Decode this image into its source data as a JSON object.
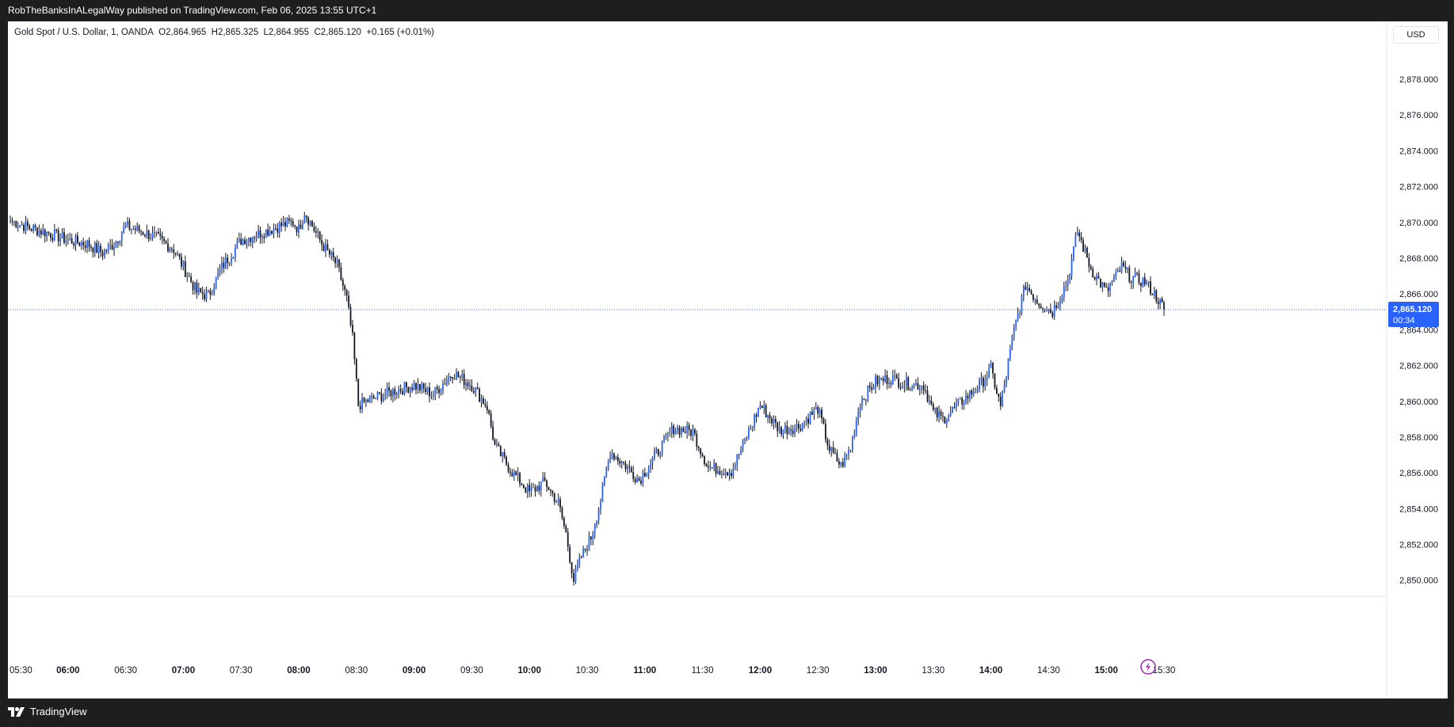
{
  "header": {
    "published": "RobTheBanksInALegalWay published on TradingView.com, Feb 06, 2025 13:55 UTC+1"
  },
  "legend": {
    "symbol": "Gold Spot / U.S. Dollar, 1, OANDA",
    "open": "O2,864.965",
    "high": "H2,865.325",
    "low": "L2,864.955",
    "close": "C2,865.120",
    "change": "+0.165 (+0.01%)"
  },
  "currency_button": "USD",
  "price_label": {
    "price": "2,865.120",
    "countdown": "00:34"
  },
  "footer": {
    "brand": "TradingView"
  },
  "colors": {
    "accent": "#2962ff",
    "candle": "#131722",
    "axis_text": "#131722",
    "event_icon": "#9c27b0"
  },
  "chart_data": {
    "type": "candlestick",
    "title": "Gold Spot / U.S. Dollar, 1, OANDA",
    "x_ticks": [
      "05:30",
      "06:00",
      "06:30",
      "07:00",
      "07:30",
      "08:00",
      "08:30",
      "09:00",
      "09:30",
      "10:00",
      "10:30",
      "11:00",
      "11:30",
      "12:00",
      "12:30",
      "13:00",
      "13:30",
      "14:00",
      "14:30",
      "15:00",
      "15:30"
    ],
    "y_ticks": [
      "2,850.000",
      "2,852.000",
      "2,854.000",
      "2,856.000",
      "2,858.000",
      "2,860.000",
      "2,862.000",
      "2,864.000",
      "2,866.000",
      "2,868.000",
      "2,870.000",
      "2,872.000",
      "2,874.000",
      "2,876.000",
      "2,878.000"
    ],
    "ylim": [
      2848.6,
      2880.2
    ],
    "last_price": 2865.12,
    "grid": false,
    "close_path": [
      [
        "05:30",
        2870.1
      ],
      [
        "05:40",
        2869.7
      ],
      [
        "05:50",
        2869.4
      ],
      [
        "06:00",
        2869.0
      ],
      [
        "06:10",
        2868.8
      ],
      [
        "06:18",
        2868.3
      ],
      [
        "06:24",
        2868.8
      ],
      [
        "06:30",
        2869.8
      ],
      [
        "06:38",
        2869.5
      ],
      [
        "06:45",
        2869.2
      ],
      [
        "06:55",
        2868.5
      ],
      [
        "07:00",
        2867.5
      ],
      [
        "07:07",
        2866.1
      ],
      [
        "07:13",
        2865.9
      ],
      [
        "07:20",
        2867.5
      ],
      [
        "07:30",
        2869.0
      ],
      [
        "07:40",
        2869.4
      ],
      [
        "07:50",
        2869.8
      ],
      [
        "07:57",
        2870.0
      ],
      [
        "08:00",
        2869.6
      ],
      [
        "08:03",
        2870.6
      ],
      [
        "08:07",
        2869.8
      ],
      [
        "08:12",
        2868.8
      ],
      [
        "08:20",
        2867.6
      ],
      [
        "08:25",
        2865.7
      ],
      [
        "08:28",
        2863.5
      ],
      [
        "08:31",
        2859.8
      ],
      [
        "08:40",
        2860.2
      ],
      [
        "08:50",
        2860.6
      ],
      [
        "09:00",
        2860.9
      ],
      [
        "09:10",
        2860.4
      ],
      [
        "09:20",
        2861.6
      ],
      [
        "09:30",
        2860.9
      ],
      [
        "09:38",
        2859.7
      ],
      [
        "09:42",
        2857.5
      ],
      [
        "09:50",
        2856.2
      ],
      [
        "10:00",
        2854.9
      ],
      [
        "10:08",
        2855.5
      ],
      [
        "10:15",
        2854.3
      ],
      [
        "10:19",
        2852.6
      ],
      [
        "10:23",
        2850.0
      ],
      [
        "10:27",
        2851.3
      ],
      [
        "10:32",
        2852.4
      ],
      [
        "10:37",
        2854.5
      ],
      [
        "10:42",
        2857.2
      ],
      [
        "10:50",
        2856.4
      ],
      [
        "10:57",
        2855.6
      ],
      [
        "11:05",
        2856.9
      ],
      [
        "11:15",
        2858.5
      ],
      [
        "11:25",
        2858.3
      ],
      [
        "11:33",
        2856.3
      ],
      [
        "11:45",
        2856.1
      ],
      [
        "11:52",
        2857.8
      ],
      [
        "12:00",
        2859.8
      ],
      [
        "12:10",
        2858.4
      ],
      [
        "12:20",
        2858.6
      ],
      [
        "12:30",
        2859.6
      ],
      [
        "12:36",
        2857.3
      ],
      [
        "12:42",
        2856.4
      ],
      [
        "12:47",
        2857.4
      ],
      [
        "12:52",
        2860.0
      ],
      [
        "13:00",
        2861.1
      ],
      [
        "13:08",
        2861.3
      ],
      [
        "13:15",
        2861.0
      ],
      [
        "13:25",
        2860.9
      ],
      [
        "13:30",
        2859.4
      ],
      [
        "13:35",
        2859.0
      ],
      [
        "13:45",
        2860.0
      ],
      [
        "13:55",
        2861.0
      ],
      [
        "14:00",
        2861.8
      ],
      [
        "14:05",
        2859.7
      ],
      [
        "14:12",
        2864.0
      ],
      [
        "14:18",
        2866.5
      ],
      [
        "14:25",
        2865.5
      ],
      [
        "14:32",
        2865.0
      ],
      [
        "14:40",
        2866.8
      ],
      [
        "14:45",
        2869.5
      ],
      [
        "14:52",
        2867.4
      ],
      [
        "15:00",
        2866.1
      ],
      [
        "15:08",
        2867.5
      ],
      [
        "15:13",
        2866.9
      ],
      [
        "15:20",
        2866.7
      ],
      [
        "15:27",
        2865.7
      ],
      [
        "15:30",
        2865.12
      ]
    ]
  }
}
